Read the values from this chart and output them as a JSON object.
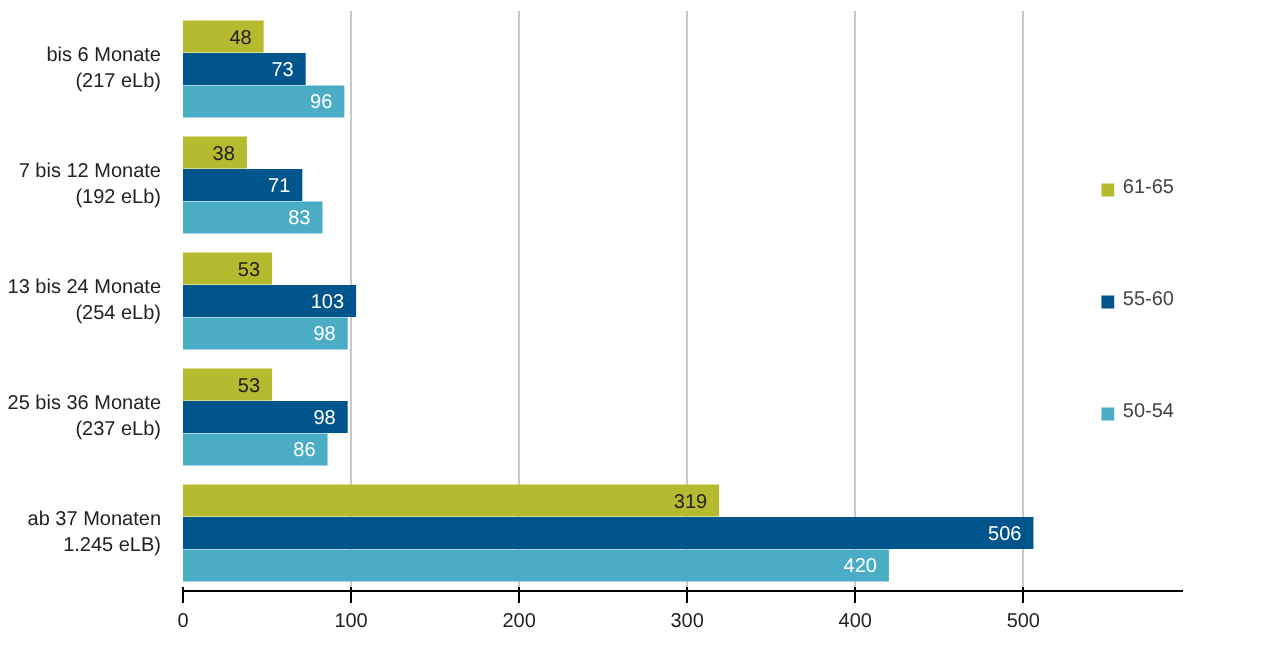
{
  "chart_data": {
    "type": "bar",
    "orientation": "horizontal",
    "categories": [
      "bis 6 Monate\n(217 eLb)",
      "7 bis 12 Monate\n(192 eLb)",
      "13 bis 24 Monate\n(254 eLb)",
      "25 bis 36 Monate\n(237 eLb)",
      "ab 37 Monaten\n1.245 eLB)"
    ],
    "series": [
      {
        "name": "61-65",
        "color": "#b5ba2e",
        "values": [
          48,
          38,
          53,
          53,
          319
        ]
      },
      {
        "name": "55-60",
        "color": "#00558c",
        "values": [
          73,
          71,
          103,
          98,
          506
        ]
      },
      {
        "name": "50-54",
        "color": "#4bacc6",
        "values": [
          96,
          83,
          98,
          86,
          420
        ]
      }
    ],
    "xlim": [
      0,
      595
    ],
    "xticks": [
      0,
      100,
      200,
      300,
      400,
      500
    ],
    "grid": "x",
    "legend": "right",
    "data_labels": true
  }
}
